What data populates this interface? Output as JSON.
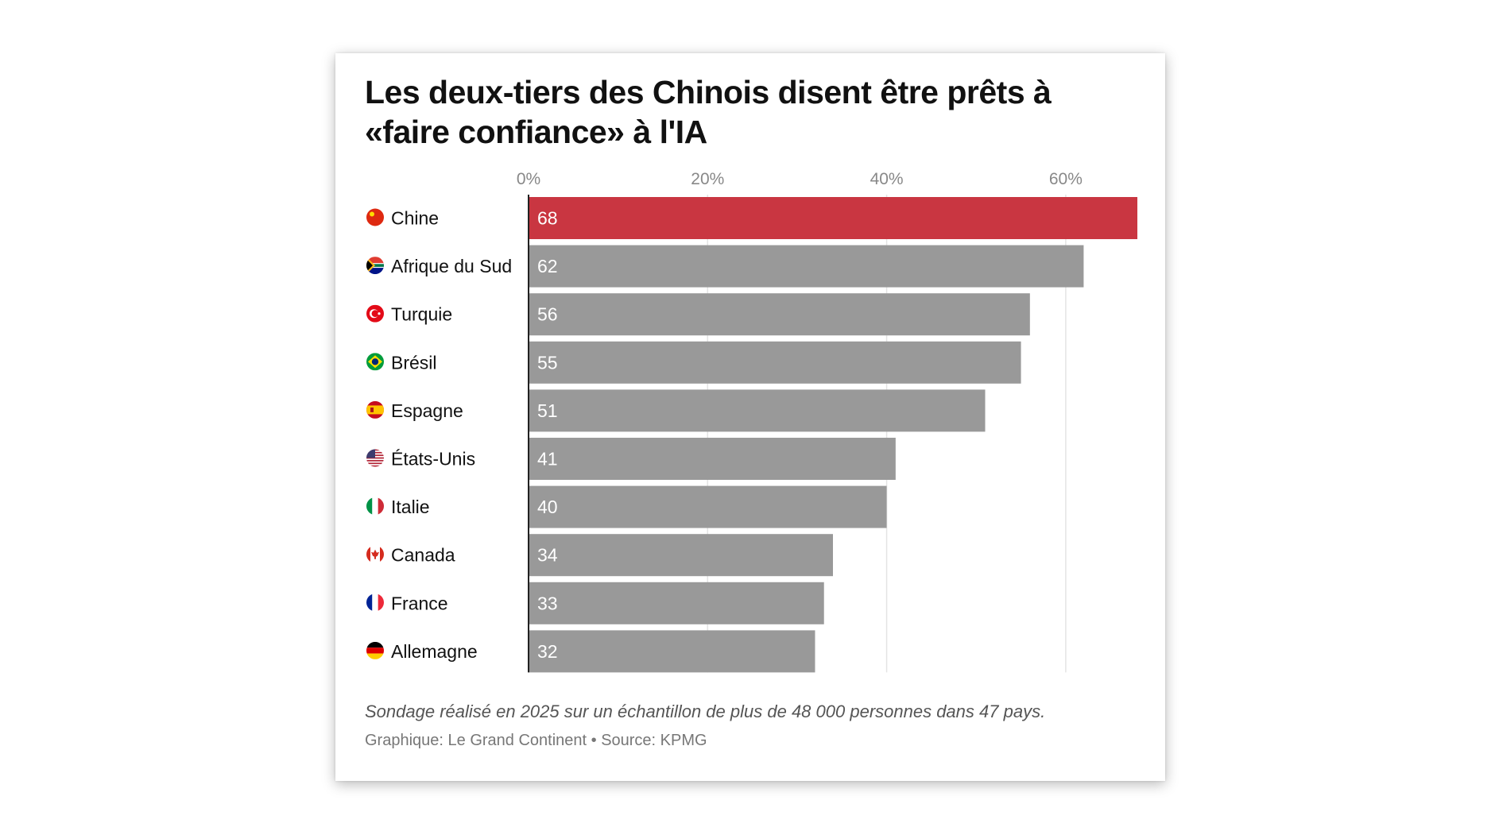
{
  "chart_data": {
    "type": "bar",
    "orientation": "horizontal",
    "title": "Les deux-tiers des Chinois disent être prêts à «faire confiance» à l'IA",
    "categories": [
      "Chine",
      "Afrique du Sud",
      "Turquie",
      "Brésil",
      "Espagne",
      "États-Unis",
      "Italie",
      "Canada",
      "France",
      "Allemagne"
    ],
    "values": [
      68,
      62,
      56,
      55,
      51,
      41,
      40,
      34,
      33,
      32
    ],
    "value_labels": [
      "68",
      "62",
      "56",
      "55",
      "51",
      "41",
      "40",
      "34",
      "33",
      "32"
    ],
    "flags": [
      "china-flag-icon",
      "south-africa-flag-icon",
      "turkey-flag-icon",
      "brazil-flag-icon",
      "spain-flag-icon",
      "usa-flag-icon",
      "italy-flag-icon",
      "canada-flag-icon",
      "france-flag-icon",
      "germany-flag-icon"
    ],
    "xticks": [
      0,
      20,
      40,
      60
    ],
    "xtick_labels": [
      "0%",
      "20%",
      "40%",
      "60%"
    ],
    "xlim": [
      0,
      68
    ],
    "xaxis_position": "top",
    "grid": true,
    "highlight_category": "Chine",
    "colors": {
      "highlight": "#c93641",
      "default": "#999999",
      "grid": "#e4e4e4",
      "axis": "#222222"
    },
    "note": "Sondage réalisé en 2025 sur un échantillon de plus de 48 000 personnes dans 47 pays.",
    "source": "Graphique: Le Grand Continent • Source: KPMG"
  }
}
